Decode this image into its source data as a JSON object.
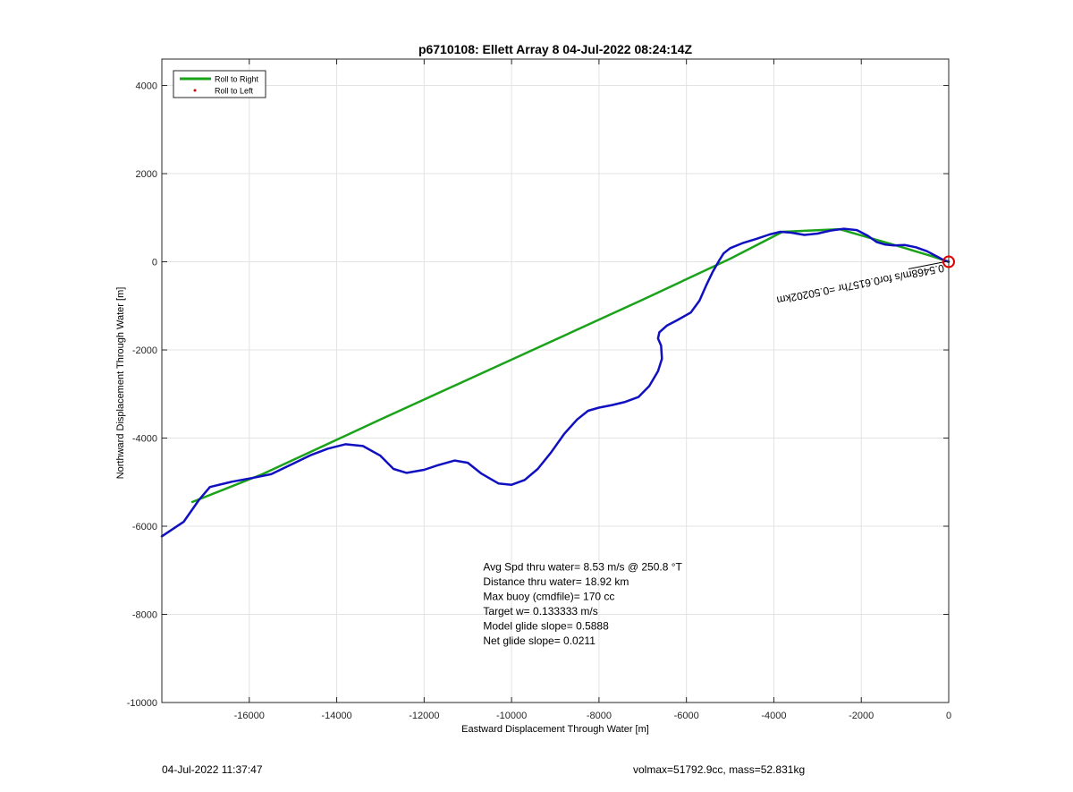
{
  "chart_data": {
    "type": "line",
    "title": "p6710108: Ellett Array 8 04-Jul-2022 08:24:14Z",
    "xlabel": "Eastward Displacement Through Water [m]",
    "ylabel": "Northward Displacement Through Water [m]",
    "xlim": [
      -18000,
      0
    ],
    "ylim": [
      -10000,
      4600
    ],
    "xticks": [
      -16000,
      -14000,
      -12000,
      -10000,
      -8000,
      -6000,
      -4000,
      -2000,
      0
    ],
    "xtick_labels": [
      "-16000",
      "-14000",
      "-12000",
      "-10000",
      "-8000",
      "-6000",
      "-4000",
      "-2000",
      "0"
    ],
    "yticks": [
      -10000,
      -8000,
      -6000,
      -4000,
      -2000,
      0,
      2000,
      4000
    ],
    "ytick_labels": [
      "-10000",
      "-8000",
      "-6000",
      "-4000",
      "-2000",
      "0",
      "2000",
      "4000"
    ],
    "grid": true,
    "legend_position": "top-left",
    "legend": [
      {
        "name": "Roll to Right",
        "color": "#1aa31a",
        "style": "line"
      },
      {
        "name": "Roll to Left",
        "color": "#e00000",
        "style": "dot"
      }
    ],
    "series": [
      {
        "name": "Roll to Right",
        "color": "#1aa31a",
        "x": [
          -17300,
          -15700,
          -13000,
          -10000,
          -7000,
          -5000,
          -3800,
          -2500,
          -1200,
          -400,
          0
        ],
        "y": [
          -5450,
          -4820,
          -3580,
          -2220,
          -860,
          70,
          680,
          740,
          370,
          130,
          0
        ]
      },
      {
        "name": "track",
        "color": "#1010c0",
        "x": [
          -18000,
          -17500,
          -17150,
          -16900,
          -16400,
          -15900,
          -15500,
          -15000,
          -14600,
          -14200,
          -13800,
          -13400,
          -13000,
          -12700,
          -12400,
          -12000,
          -11700,
          -11300,
          -11000,
          -10700,
          -10300,
          -10000,
          -9700,
          -9400,
          -9100,
          -8800,
          -8500,
          -8250,
          -8000,
          -7700,
          -7400,
          -7100,
          -6850,
          -6650,
          -6560,
          -6580,
          -6650,
          -6620,
          -6450,
          -6200,
          -5900,
          -5700,
          -5550,
          -5400,
          -5250,
          -5150,
          -5000,
          -4700,
          -4400,
          -4100,
          -3850,
          -3600,
          -3300,
          -3000,
          -2700,
          -2400,
          -2100,
          -1850,
          -1650,
          -1450,
          -1250,
          -1000,
          -750,
          -500,
          -250,
          -100,
          0
        ],
        "y": [
          -6230,
          -5900,
          -5400,
          -5110,
          -4990,
          -4900,
          -4820,
          -4580,
          -4390,
          -4240,
          -4140,
          -4180,
          -4400,
          -4700,
          -4790,
          -4720,
          -4620,
          -4510,
          -4560,
          -4800,
          -5030,
          -5060,
          -4950,
          -4700,
          -4330,
          -3910,
          -3580,
          -3380,
          -3310,
          -3250,
          -3180,
          -3070,
          -2820,
          -2480,
          -2200,
          -1900,
          -1740,
          -1600,
          -1450,
          -1320,
          -1150,
          -880,
          -540,
          -230,
          30,
          190,
          310,
          430,
          520,
          620,
          680,
          660,
          610,
          640,
          710,
          750,
          720,
          590,
          450,
          390,
          370,
          380,
          330,
          240,
          110,
          30,
          0
        ]
      }
    ],
    "marker": {
      "x": 0,
      "y": 0,
      "color": "#dd0000"
    },
    "rotated_annotation": "0.5468m/s for0.6157hr =0.50202km",
    "stats": [
      "Avg Spd thru water=  8.53 m/s @ 250.8 °T",
      "Distance thru water= 18.92 km",
      "Max buoy (cmdfile)= 170 cc",
      "Target w= 0.133333 m/s",
      "Model glide slope= 0.5888",
      "Net glide slope= 0.0211"
    ],
    "stats_anchor": {
      "x": -10650,
      "y": -7000
    }
  },
  "footer": {
    "left": "04-Jul-2022 11:37:47",
    "right": "volmax=51792.9cc, mass=52.831kg"
  }
}
